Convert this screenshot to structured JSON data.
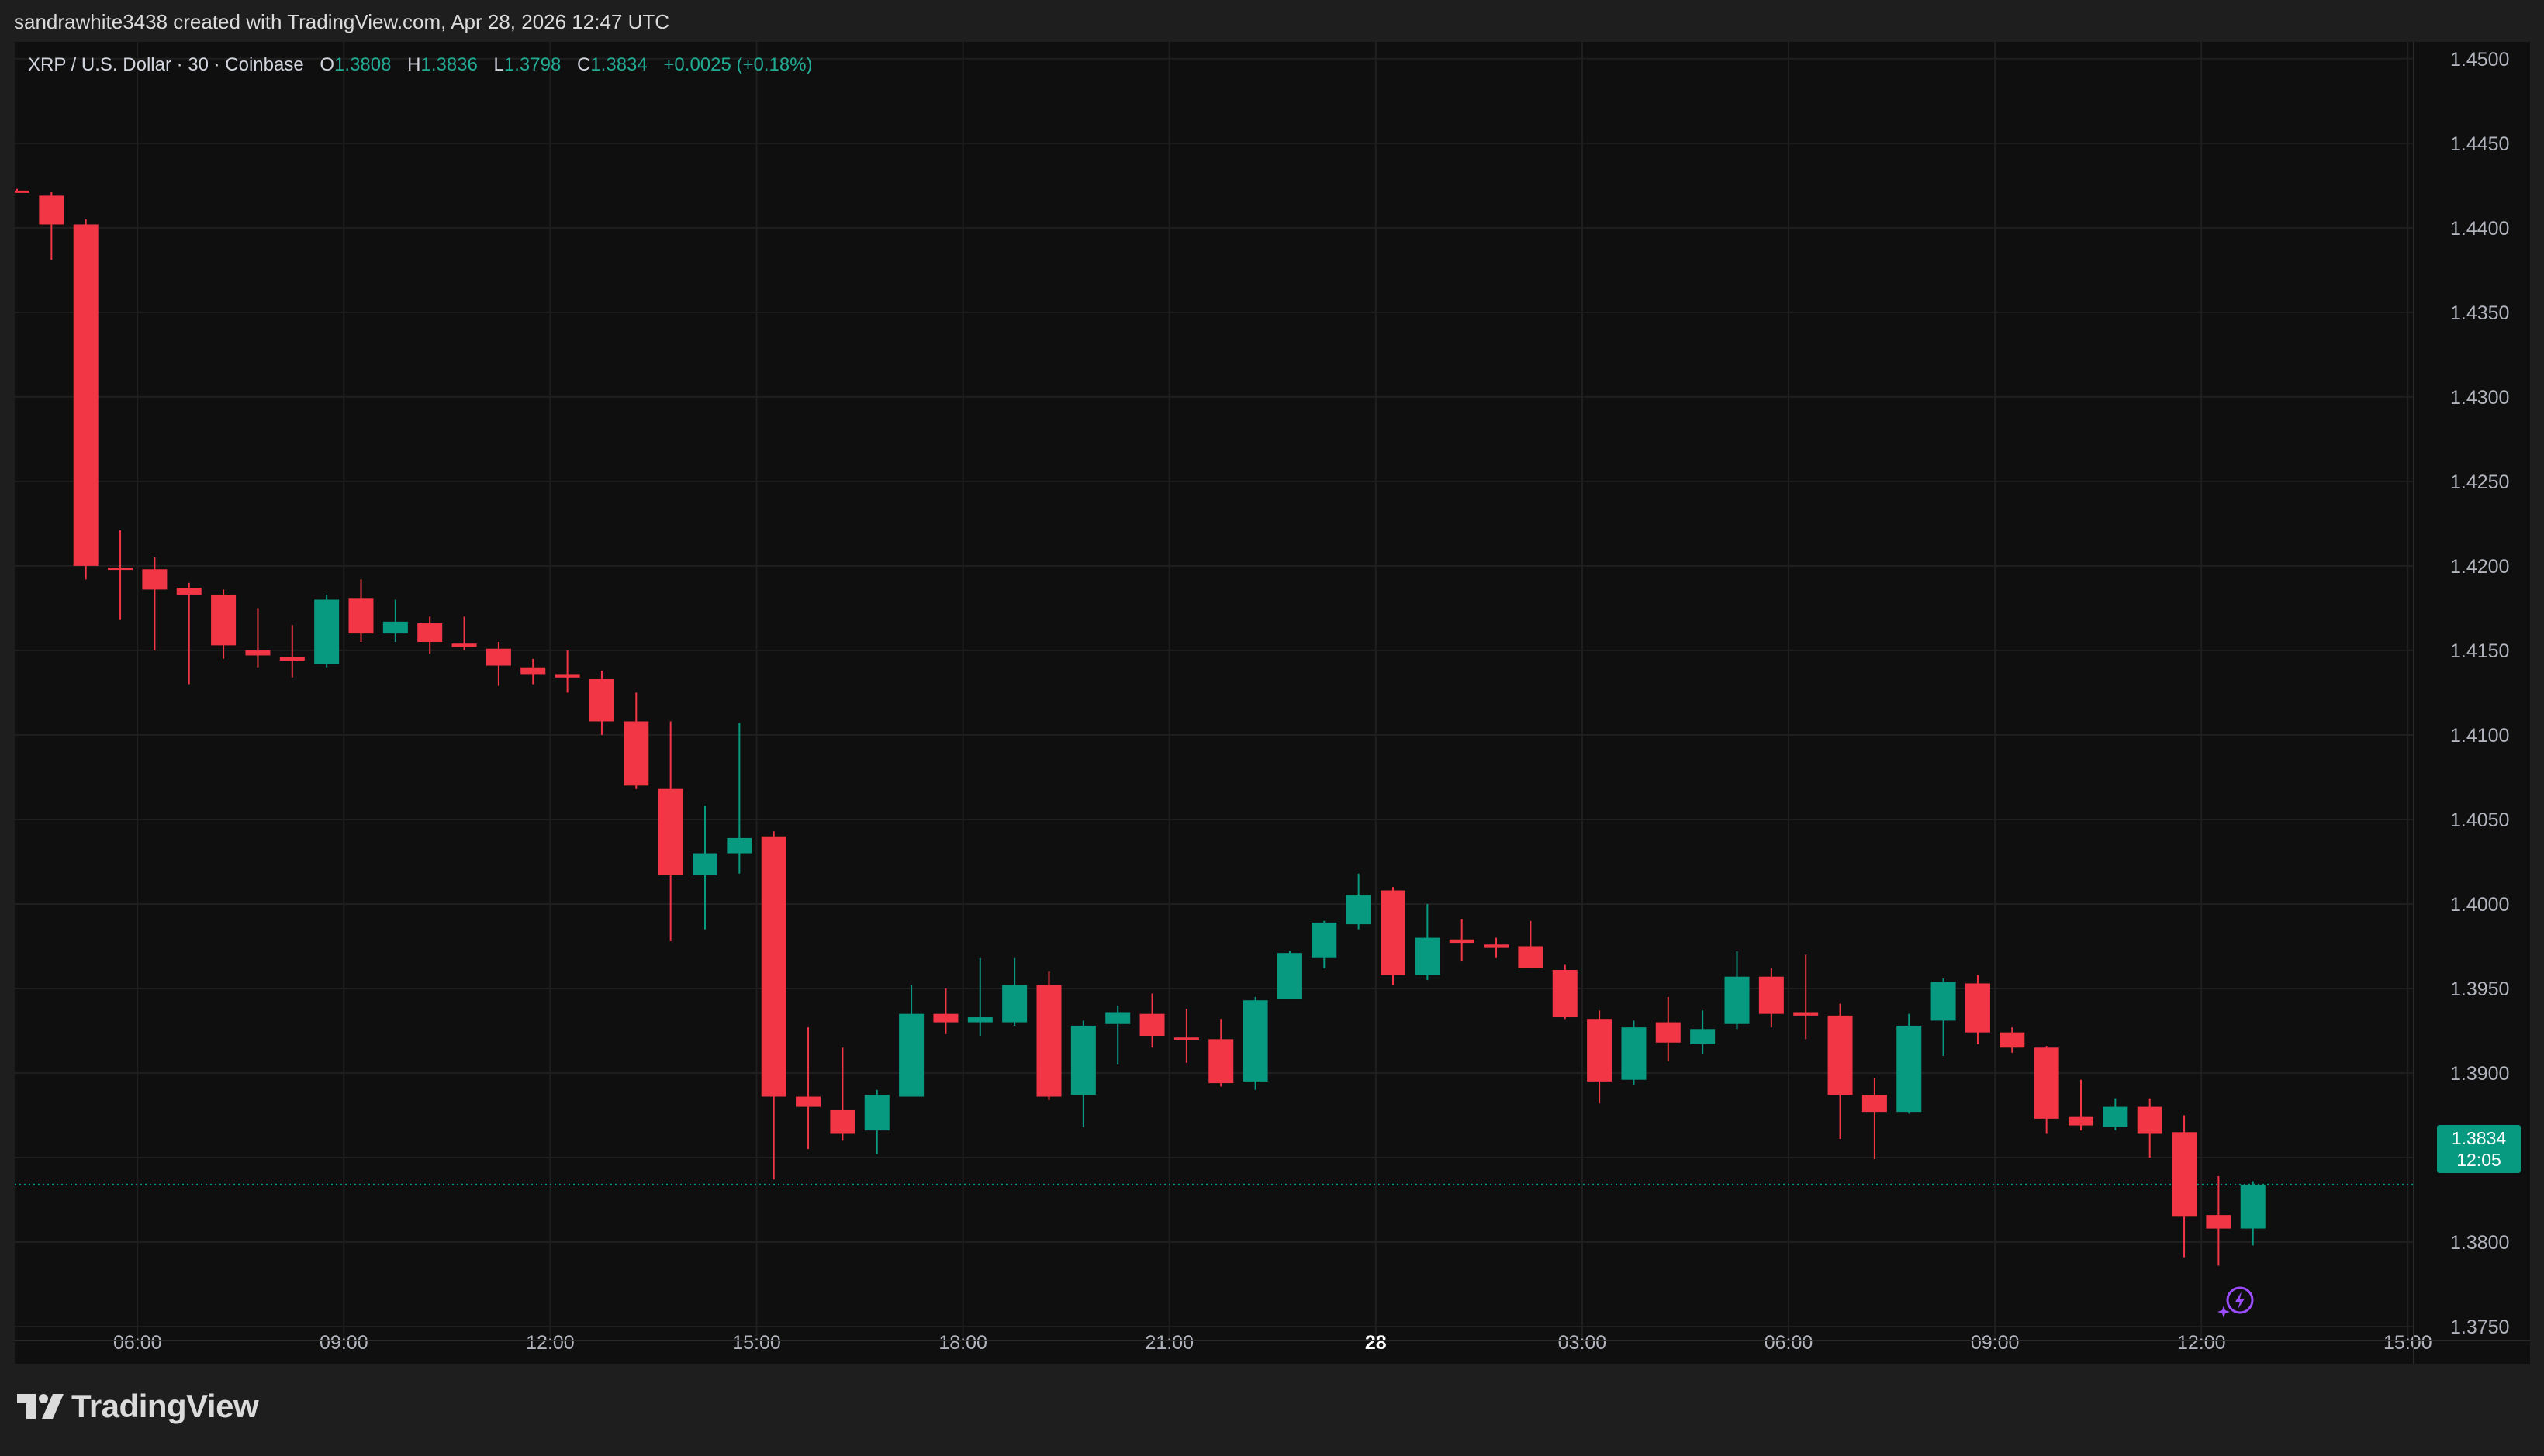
{
  "header": {
    "created_text": "sandrawhite3438 created with TradingView.com, Apr 28, 2026 12:47 UTC"
  },
  "legend": {
    "symbol_text": "XRP / U.S. Dollar · 30 · Coinbase",
    "open_label": "O",
    "open": "1.3808",
    "high_label": "H",
    "high": "1.3836",
    "low_label": "L",
    "low": "1.3798",
    "close_label": "C",
    "close": "1.3834",
    "change": "+0.0025 (+0.18%)"
  },
  "price_tag": {
    "price": "1.3834",
    "countdown": "12:05"
  },
  "footer": {
    "brand": "TradingView"
  },
  "colors": {
    "up": "#089981",
    "down": "#f23645",
    "background": "#0f0f0f",
    "grid": "#1f1f1f",
    "axis_text": "#b2b5be"
  },
  "icons": {
    "logo": "tradingview-logo-icon",
    "lightning": "lightning-bolt-icon"
  },
  "chart_data": {
    "type": "candlestick",
    "interval": "30",
    "ylim": [
      1.3728,
      1.451
    ],
    "y_ticks": [
      "1.4500",
      "1.4450",
      "1.4400",
      "1.4350",
      "1.4300",
      "1.4250",
      "1.4200",
      "1.4150",
      "1.4100",
      "1.4050",
      "1.4000",
      "1.3950",
      "1.3900",
      "1.3850",
      "1.3800",
      "1.3750"
    ],
    "x_ticks": [
      {
        "label": "06:00",
        "index": 3.5
      },
      {
        "label": "09:00",
        "index": 9.5
      },
      {
        "label": "12:00",
        "index": 15.5
      },
      {
        "label": "15:00",
        "index": 21.5
      },
      {
        "label": "18:00",
        "index": 27.5
      },
      {
        "label": "21:00",
        "index": 33.5
      },
      {
        "label": "28",
        "index": 39.5,
        "bold": true
      },
      {
        "label": "03:00",
        "index": 45.5
      },
      {
        "label": "06:00",
        "index": 51.5
      },
      {
        "label": "09:00",
        "index": 57.5
      },
      {
        "label": "12:00",
        "index": 63.5
      },
      {
        "label": "15:00",
        "index": 69.5
      }
    ],
    "last_price": 1.3834,
    "candles": [
      {
        "o": 1.4422,
        "h": 1.4423,
        "l": 1.4421,
        "c": 1.4421
      },
      {
        "o": 1.4419,
        "h": 1.4421,
        "l": 1.4381,
        "c": 1.4402
      },
      {
        "o": 1.4402,
        "h": 1.4405,
        "l": 1.4192,
        "c": 1.42
      },
      {
        "o": 1.4199,
        "h": 1.4221,
        "l": 1.4168,
        "c": 1.4198
      },
      {
        "o": 1.4198,
        "h": 1.4205,
        "l": 1.415,
        "c": 1.4186
      },
      {
        "o": 1.4187,
        "h": 1.419,
        "l": 1.413,
        "c": 1.4183
      },
      {
        "o": 1.4183,
        "h": 1.4186,
        "l": 1.4145,
        "c": 1.4153
      },
      {
        "o": 1.415,
        "h": 1.4175,
        "l": 1.414,
        "c": 1.4147
      },
      {
        "o": 1.4146,
        "h": 1.4165,
        "l": 1.4134,
        "c": 1.4144
      },
      {
        "o": 1.4142,
        "h": 1.4183,
        "l": 1.414,
        "c": 1.418
      },
      {
        "o": 1.4181,
        "h": 1.4192,
        "l": 1.4155,
        "c": 1.416
      },
      {
        "o": 1.416,
        "h": 1.418,
        "l": 1.4155,
        "c": 1.4167
      },
      {
        "o": 1.4166,
        "h": 1.417,
        "l": 1.4148,
        "c": 1.4155
      },
      {
        "o": 1.4154,
        "h": 1.417,
        "l": 1.415,
        "c": 1.4152
      },
      {
        "o": 1.4151,
        "h": 1.4155,
        "l": 1.4129,
        "c": 1.4141
      },
      {
        "o": 1.414,
        "h": 1.4145,
        "l": 1.413,
        "c": 1.4136
      },
      {
        "o": 1.4136,
        "h": 1.415,
        "l": 1.4125,
        "c": 1.4134
      },
      {
        "o": 1.4133,
        "h": 1.4138,
        "l": 1.41,
        "c": 1.4108
      },
      {
        "o": 1.4108,
        "h": 1.4125,
        "l": 1.4068,
        "c": 1.407
      },
      {
        "o": 1.4068,
        "h": 1.4108,
        "l": 1.3978,
        "c": 1.4017
      },
      {
        "o": 1.4017,
        "h": 1.4058,
        "l": 1.3985,
        "c": 1.403
      },
      {
        "o": 1.403,
        "h": 1.4107,
        "l": 1.4018,
        "c": 1.4039
      },
      {
        "o": 1.404,
        "h": 1.4043,
        "l": 1.3837,
        "c": 1.3886
      },
      {
        "o": 1.3886,
        "h": 1.3927,
        "l": 1.3855,
        "c": 1.388
      },
      {
        "o": 1.3878,
        "h": 1.3915,
        "l": 1.386,
        "c": 1.3864
      },
      {
        "o": 1.3866,
        "h": 1.389,
        "l": 1.3852,
        "c": 1.3887
      },
      {
        "o": 1.3886,
        "h": 1.3952,
        "l": 1.3886,
        "c": 1.3935
      },
      {
        "o": 1.3935,
        "h": 1.395,
        "l": 1.3923,
        "c": 1.393
      },
      {
        "o": 1.393,
        "h": 1.3968,
        "l": 1.3922,
        "c": 1.3933
      },
      {
        "o": 1.393,
        "h": 1.3968,
        "l": 1.3928,
        "c": 1.3952
      },
      {
        "o": 1.3952,
        "h": 1.396,
        "l": 1.3884,
        "c": 1.3886
      },
      {
        "o": 1.3887,
        "h": 1.3931,
        "l": 1.3868,
        "c": 1.3928
      },
      {
        "o": 1.3929,
        "h": 1.394,
        "l": 1.3905,
        "c": 1.3936
      },
      {
        "o": 1.3935,
        "h": 1.3947,
        "l": 1.3915,
        "c": 1.3922
      },
      {
        "o": 1.3921,
        "h": 1.3938,
        "l": 1.3906,
        "c": 1.392
      },
      {
        "o": 1.392,
        "h": 1.3932,
        "l": 1.3892,
        "c": 1.3894
      },
      {
        "o": 1.3895,
        "h": 1.3945,
        "l": 1.389,
        "c": 1.3943
      },
      {
        "o": 1.3944,
        "h": 1.3972,
        "l": 1.3944,
        "c": 1.3971
      },
      {
        "o": 1.3968,
        "h": 1.399,
        "l": 1.3962,
        "c": 1.3989
      },
      {
        "o": 1.3988,
        "h": 1.4018,
        "l": 1.3985,
        "c": 1.4005
      },
      {
        "o": 1.4008,
        "h": 1.401,
        "l": 1.3952,
        "c": 1.3958
      },
      {
        "o": 1.3958,
        "h": 1.4,
        "l": 1.3955,
        "c": 1.398
      },
      {
        "o": 1.3979,
        "h": 1.3991,
        "l": 1.3966,
        "c": 1.3977
      },
      {
        "o": 1.3976,
        "h": 1.398,
        "l": 1.3968,
        "c": 1.3974
      },
      {
        "o": 1.3975,
        "h": 1.399,
        "l": 1.3962,
        "c": 1.3962
      },
      {
        "o": 1.3961,
        "h": 1.3964,
        "l": 1.3932,
        "c": 1.3933
      },
      {
        "o": 1.3932,
        "h": 1.3937,
        "l": 1.3882,
        "c": 1.3895
      },
      {
        "o": 1.3896,
        "h": 1.3931,
        "l": 1.3893,
        "c": 1.3927
      },
      {
        "o": 1.393,
        "h": 1.3945,
        "l": 1.3907,
        "c": 1.3918
      },
      {
        "o": 1.3917,
        "h": 1.3937,
        "l": 1.3911,
        "c": 1.3926
      },
      {
        "o": 1.3929,
        "h": 1.3972,
        "l": 1.3926,
        "c": 1.3957
      },
      {
        "o": 1.3957,
        "h": 1.3962,
        "l": 1.3927,
        "c": 1.3935
      },
      {
        "o": 1.3936,
        "h": 1.397,
        "l": 1.392,
        "c": 1.3934
      },
      {
        "o": 1.3934,
        "h": 1.3941,
        "l": 1.3861,
        "c": 1.3887
      },
      {
        "o": 1.3887,
        "h": 1.3897,
        "l": 1.3849,
        "c": 1.3877
      },
      {
        "o": 1.3877,
        "h": 1.3935,
        "l": 1.3876,
        "c": 1.3928
      },
      {
        "o": 1.3931,
        "h": 1.3956,
        "l": 1.391,
        "c": 1.3954
      },
      {
        "o": 1.3953,
        "h": 1.3958,
        "l": 1.3917,
        "c": 1.3924
      },
      {
        "o": 1.3924,
        "h": 1.3927,
        "l": 1.3912,
        "c": 1.3915
      },
      {
        "o": 1.3915,
        "h": 1.3916,
        "l": 1.3864,
        "c": 1.3873
      },
      {
        "o": 1.3874,
        "h": 1.3896,
        "l": 1.3866,
        "c": 1.3869
      },
      {
        "o": 1.3868,
        "h": 1.3885,
        "l": 1.3866,
        "c": 1.388
      },
      {
        "o": 1.388,
        "h": 1.3885,
        "l": 1.385,
        "c": 1.3864
      },
      {
        "o": 1.3865,
        "h": 1.3875,
        "l": 1.3791,
        "c": 1.3815
      },
      {
        "o": 1.3816,
        "h": 1.3839,
        "l": 1.3786,
        "c": 1.3808
      },
      {
        "o": 1.3808,
        "h": 1.3836,
        "l": 1.3798,
        "c": 1.3834
      }
    ]
  }
}
